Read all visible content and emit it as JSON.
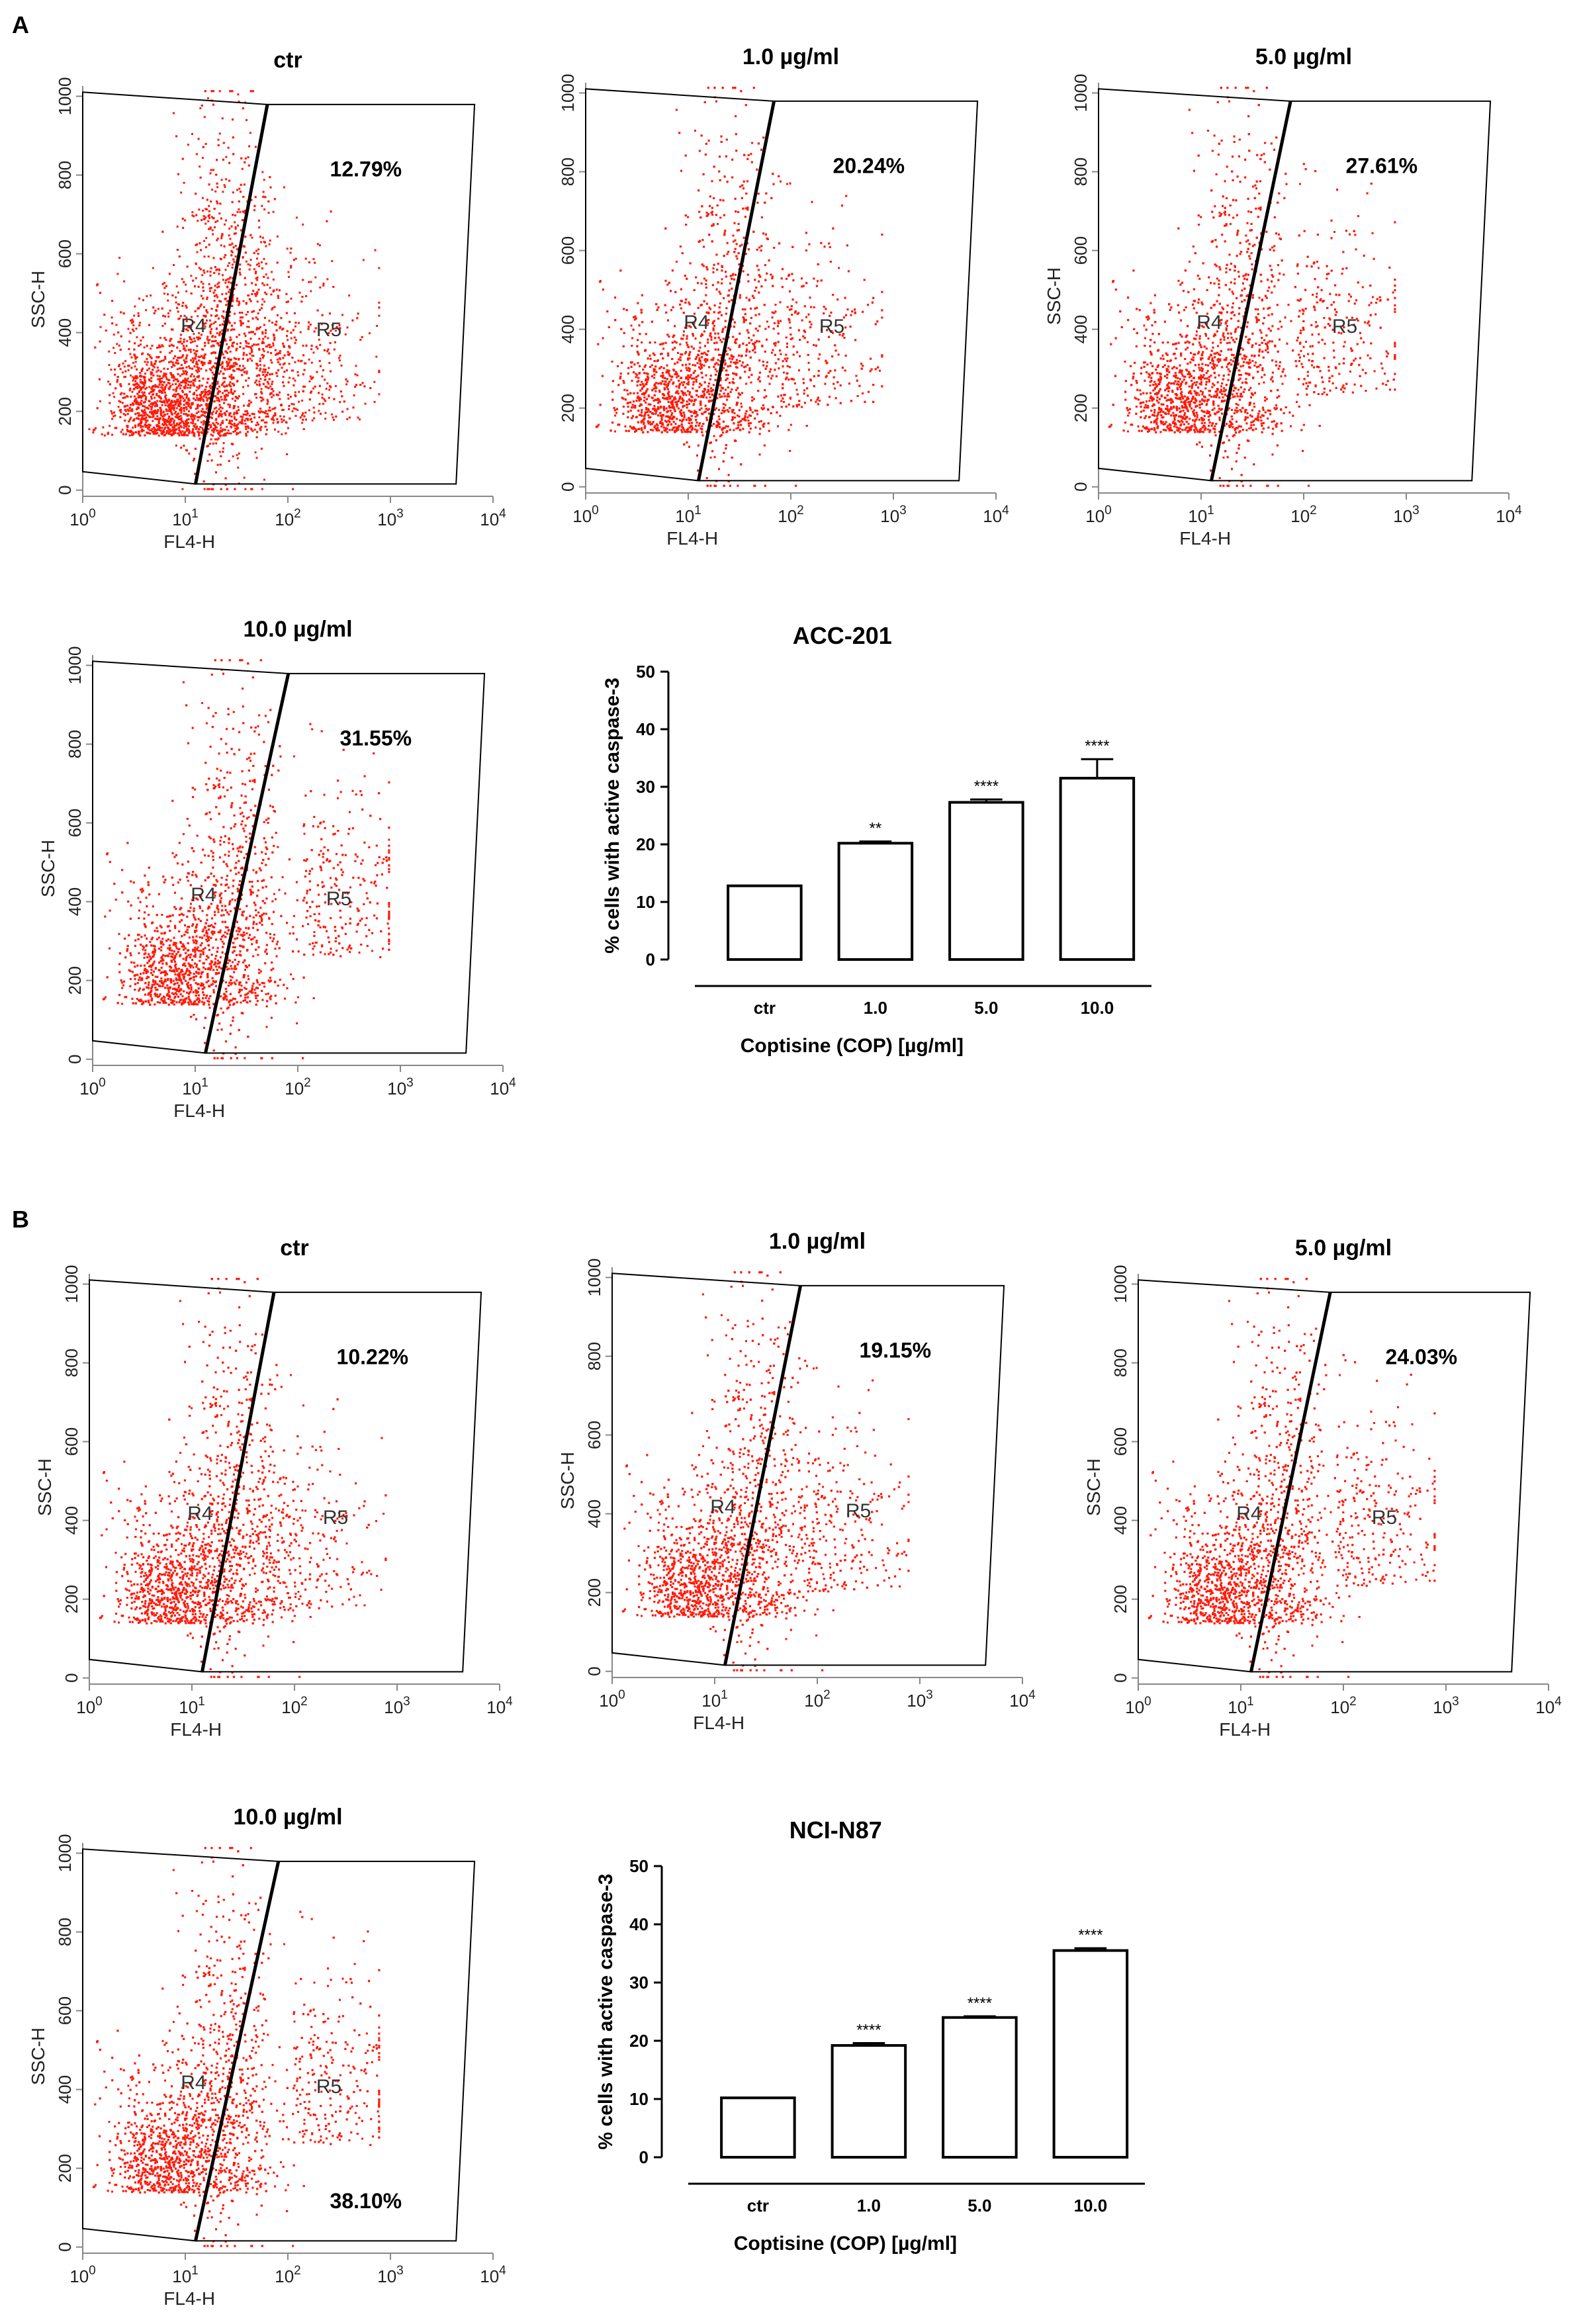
{
  "chart_data": {
    "panels": [
      {
        "letter": "A",
        "scatter_plots": [
          {
            "title": "ctr",
            "percent_label": "12.79%",
            "region_left": "R4",
            "region_right": "R5",
            "xlabel": "FL4-H",
            "ylabel": "SSC-H",
            "yticks": [
              "0",
              "200",
              "400",
              "600",
              "800",
              "1000"
            ],
            "percent_pos": "top-right"
          },
          {
            "title": "1.0 µg/ml",
            "percent_label": "20.24%",
            "region_left": "R4",
            "region_right": "R5",
            "xlabel": "FL4-H",
            "ylabel": "",
            "yticks": [
              "0",
              "200",
              "400",
              "600",
              "800",
              "1000"
            ],
            "percent_pos": "top-right"
          },
          {
            "title": "5.0 µg/ml",
            "percent_label": "27.61%",
            "region_left": "R4",
            "region_right": "R5",
            "xlabel": "FL4-H",
            "ylabel": "SSC-H",
            "yticks": [
              "0",
              "200",
              "400",
              "600",
              "800",
              "1000"
            ],
            "percent_pos": "top-right"
          },
          {
            "title": "10.0 µg/ml",
            "percent_label": "31.55%",
            "region_left": "R4",
            "region_right": "R5",
            "xlabel": "FL4-H",
            "ylabel": "SSC-H",
            "yticks": [
              "0",
              "200",
              "400",
              "600",
              "800",
              "1000"
            ],
            "percent_pos": "top-right"
          }
        ],
        "bar_chart": {
          "type": "bar",
          "title": "ACC-201",
          "categories": [
            "ctr",
            "1.0",
            "5.0",
            "10.0"
          ],
          "values": [
            12.8,
            20.2,
            27.3,
            31.5
          ],
          "errors": [
            0,
            0.3,
            0.5,
            3.3
          ],
          "significance": [
            "",
            "**",
            "****",
            "****"
          ],
          "xlabel": "Coptisine (COP) [µg/ml]",
          "ylabel": "% cells with active caspase-3",
          "ylim": [
            0,
            50
          ],
          "yticks": [
            0,
            10,
            20,
            30,
            40,
            50
          ]
        }
      },
      {
        "letter": "B",
        "scatter_plots": [
          {
            "title": "ctr",
            "percent_label": "10.22%",
            "region_left": "R4",
            "region_right": "R5",
            "xlabel": "FL4-H",
            "ylabel": "SSC-H",
            "yticks": [
              "0",
              "200",
              "400",
              "600",
              "800",
              "1000"
            ],
            "percent_pos": "top-right"
          },
          {
            "title": "1.0 µg/ml",
            "percent_label": "19.15%",
            "region_left": "R4",
            "region_right": "R5",
            "xlabel": "FL4-H",
            "ylabel": "SSC-H",
            "yticks": [
              "0",
              "200",
              "400",
              "600",
              "800",
              "1000"
            ],
            "percent_pos": "top-right"
          },
          {
            "title": "5.0 µg/ml",
            "percent_label": "24.03%",
            "region_left": "R4",
            "region_right": "R5",
            "xlabel": "FL4-H",
            "ylabel": "SSC-H",
            "yticks": [
              "0",
              "200",
              "400",
              "600",
              "800",
              "1000"
            ],
            "percent_pos": "top-right"
          },
          {
            "title": "10.0 µg/ml",
            "percent_label": "38.10%",
            "region_left": "R4",
            "region_right": "R5",
            "xlabel": "FL4-H",
            "ylabel": "SSC-H",
            "yticks": [
              "0",
              "200",
              "400",
              "600",
              "800",
              "1000"
            ],
            "percent_pos": "bottom-right"
          }
        ],
        "bar_chart": {
          "type": "bar",
          "title": "NCI-N87",
          "categories": [
            "ctr",
            "1.0",
            "5.0",
            "10.0"
          ],
          "values": [
            10.2,
            19.2,
            24.0,
            35.5
          ],
          "errors": [
            0,
            0.4,
            0.2,
            0.4
          ],
          "significance": [
            "",
            "****",
            "****",
            "****"
          ],
          "xlabel": "Coptisine (COP) [µg/ml]",
          "ylabel": "% cells with active caspase-3",
          "ylim": [
            0,
            50
          ],
          "yticks": [
            0,
            10,
            20,
            30,
            40,
            50
          ]
        }
      }
    ],
    "x_axis_ticks": [
      "0",
      "1",
      "2",
      "3",
      "4"
    ],
    "x_axis_base": "10",
    "dot_color": "#ff1a0a"
  }
}
